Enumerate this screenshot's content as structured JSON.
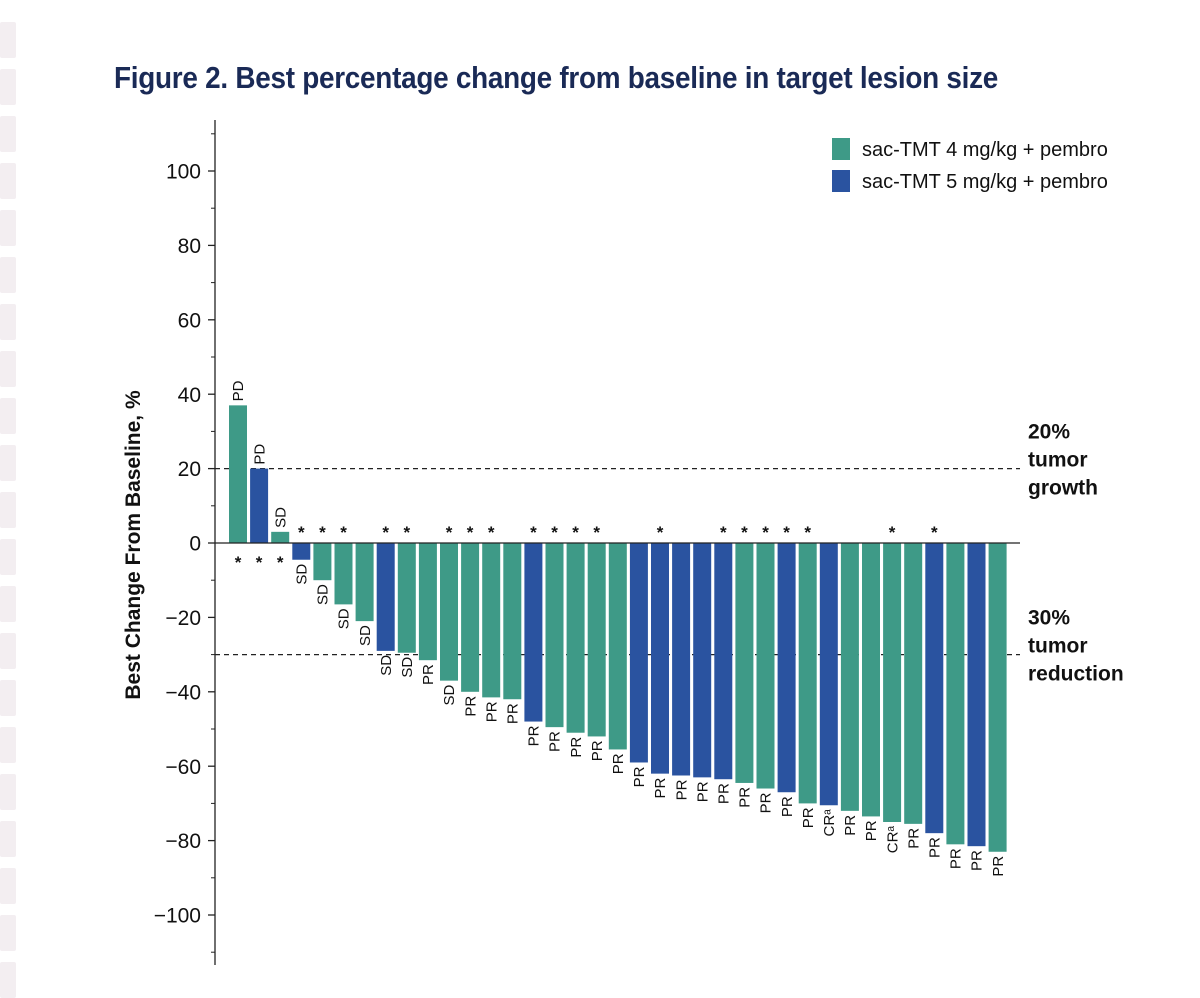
{
  "figure": {
    "title": "Figure 2. Best percentage change from baseline in target lesion size"
  },
  "chart_data": {
    "type": "bar",
    "title": "Figure 2. Best percentage change from baseline in target lesion size",
    "xlabel": "",
    "ylabel": "Best Change From Baseline, %",
    "ylim": [
      -110,
      110
    ],
    "yticks": [
      100,
      80,
      60,
      40,
      20,
      0,
      -20,
      -40,
      -60,
      -80,
      -100
    ],
    "ytick_labels": [
      "100",
      "80",
      "60",
      "40",
      "20",
      "0",
      "−20",
      "−40",
      "−60",
      "−80",
      "−100"
    ],
    "colors": {
      "sac-TMT 4 mg/kg + pembro": "#3e9a87",
      "sac-TMT 5 mg/kg + pembro": "#2a53a0"
    },
    "legend": {
      "placement": "top-right",
      "entries": [
        {
          "label": "sac-TMT 4 mg/kg + pembro",
          "color": "#3e9a87"
        },
        {
          "label": "sac-TMT 5 mg/kg + pembro",
          "color": "#2a53a0"
        }
      ]
    },
    "reference_lines": [
      {
        "value": 20,
        "label": [
          "20%",
          "tumor",
          "growth"
        ]
      },
      {
        "value": -30,
        "label": [
          "30%",
          "tumor",
          "reduction"
        ]
      }
    ],
    "bars": [
      {
        "value": 37,
        "dose": "4 mg/kg",
        "response": "PD",
        "marker": "*"
      },
      {
        "value": 20,
        "dose": "5 mg/kg",
        "response": "PD",
        "marker": "*"
      },
      {
        "value": 3,
        "dose": "4 mg/kg",
        "response": "SD",
        "marker": "*"
      },
      {
        "value": -4.5,
        "dose": "5 mg/kg",
        "response": "SD",
        "marker": "*"
      },
      {
        "value": -10,
        "dose": "4 mg/kg",
        "response": "SD",
        "marker": "*"
      },
      {
        "value": -16.5,
        "dose": "4 mg/kg",
        "response": "SD",
        "marker": "*"
      },
      {
        "value": -21,
        "dose": "4 mg/kg",
        "response": "SD",
        "marker": ""
      },
      {
        "value": -29,
        "dose": "5 mg/kg",
        "response": "SD",
        "marker": "*"
      },
      {
        "value": -29.5,
        "dose": "4 mg/kg",
        "response": "SD",
        "marker": "*"
      },
      {
        "value": -31.5,
        "dose": "4 mg/kg",
        "response": "PR",
        "marker": ""
      },
      {
        "value": -37,
        "dose": "4 mg/kg",
        "response": "SD",
        "marker": "*"
      },
      {
        "value": -40,
        "dose": "4 mg/kg",
        "response": "PR",
        "marker": "*"
      },
      {
        "value": -41.5,
        "dose": "4 mg/kg",
        "response": "PR",
        "marker": "*"
      },
      {
        "value": -42,
        "dose": "4 mg/kg",
        "response": "PR",
        "marker": ""
      },
      {
        "value": -48,
        "dose": "5 mg/kg",
        "response": "PR",
        "marker": "*"
      },
      {
        "value": -49.5,
        "dose": "4 mg/kg",
        "response": "PR",
        "marker": "*"
      },
      {
        "value": -51,
        "dose": "4 mg/kg",
        "response": "PR",
        "marker": "*"
      },
      {
        "value": -52,
        "dose": "4 mg/kg",
        "response": "PR",
        "marker": "*"
      },
      {
        "value": -55.5,
        "dose": "4 mg/kg",
        "response": "PR",
        "marker": ""
      },
      {
        "value": -59,
        "dose": "5 mg/kg",
        "response": "PR",
        "marker": ""
      },
      {
        "value": -62,
        "dose": "5 mg/kg",
        "response": "PR",
        "marker": "*"
      },
      {
        "value": -62.5,
        "dose": "5 mg/kg",
        "response": "PR",
        "marker": ""
      },
      {
        "value": -63,
        "dose": "5 mg/kg",
        "response": "PR",
        "marker": ""
      },
      {
        "value": -63.5,
        "dose": "5 mg/kg",
        "response": "PR",
        "marker": "*"
      },
      {
        "value": -64.5,
        "dose": "4 mg/kg",
        "response": "PR",
        "marker": "*"
      },
      {
        "value": -66,
        "dose": "4 mg/kg",
        "response": "PR",
        "marker": "*"
      },
      {
        "value": -67,
        "dose": "5 mg/kg",
        "response": "PR",
        "marker": "*"
      },
      {
        "value": -70,
        "dose": "4 mg/kg",
        "response": "PR",
        "marker": "*"
      },
      {
        "value": -70.5,
        "dose": "5 mg/kg",
        "response": "CRᵃ",
        "marker": ""
      },
      {
        "value": -72,
        "dose": "4 mg/kg",
        "response": "PR",
        "marker": ""
      },
      {
        "value": -73.5,
        "dose": "4 mg/kg",
        "response": "PR",
        "marker": ""
      },
      {
        "value": -75,
        "dose": "4 mg/kg",
        "response": "CRᵃ",
        "marker": "*"
      },
      {
        "value": -75.5,
        "dose": "4 mg/kg",
        "response": "PR",
        "marker": ""
      },
      {
        "value": -78,
        "dose": "5 mg/kg",
        "response": "PR",
        "marker": "*"
      },
      {
        "value": -81,
        "dose": "4 mg/kg",
        "response": "PR",
        "marker": ""
      },
      {
        "value": -81.5,
        "dose": "5 mg/kg",
        "response": "PR",
        "marker": ""
      },
      {
        "value": -83,
        "dose": "4 mg/kg",
        "response": "PR",
        "marker": ""
      }
    ]
  }
}
